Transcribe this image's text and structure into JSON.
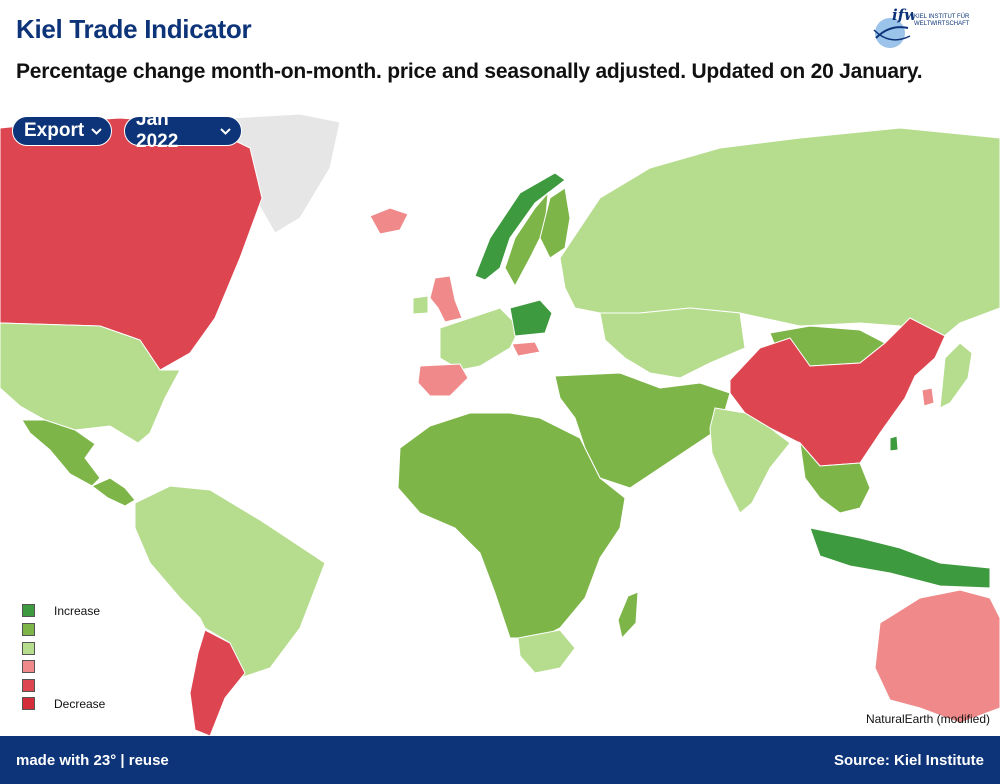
{
  "header": {
    "title": "Kiel Trade Indicator",
    "subtitle": "Percentage change month-on-month. price and seasonally adjusted. Updated on 20 January.",
    "logo_text": "ifw",
    "logo_caption_1": "KIEL INSTITUT FÜR",
    "logo_caption_2": "WELTWIRTSCHAFT"
  },
  "controls": {
    "flow_selected": "Export",
    "month_selected": "Jan 2022"
  },
  "legend": {
    "items": [
      {
        "label": "Increase",
        "color": "#3e9a3e"
      },
      {
        "label": "",
        "color": "#7db548"
      },
      {
        "label": "",
        "color": "#b6dc8e"
      },
      {
        "label": "",
        "color": "#f08a8a"
      },
      {
        "label": "",
        "color": "#dd4650"
      },
      {
        "label": "Decrease",
        "color": "#d42c3a"
      }
    ]
  },
  "map": {
    "source_note": "NaturalEarth (modified)",
    "colors": {
      "strong_increase": "#3e9a3e",
      "increase": "#7db548",
      "slight_increase": "#b6dc8e",
      "slight_decrease": "#f08a8a",
      "decrease": "#dd4650",
      "no_data": "#e6e6e6"
    },
    "regions": [
      {
        "name": "Canada",
        "category": "decrease"
      },
      {
        "name": "United States",
        "category": "slight_increase"
      },
      {
        "name": "Mexico",
        "category": "increase"
      },
      {
        "name": "Central America",
        "category": "increase"
      },
      {
        "name": "Greenland",
        "category": "no_data"
      },
      {
        "name": "Iceland",
        "category": "slight_decrease"
      },
      {
        "name": "South America",
        "category": "slight_increase"
      },
      {
        "name": "Argentina",
        "category": "decrease"
      },
      {
        "name": "United Kingdom",
        "category": "slight_decrease"
      },
      {
        "name": "Spain",
        "category": "slight_decrease"
      },
      {
        "name": "Norway",
        "category": "strong_increase"
      },
      {
        "name": "Sweden",
        "category": "increase"
      },
      {
        "name": "Finland",
        "category": "increase"
      },
      {
        "name": "Poland",
        "category": "strong_increase"
      },
      {
        "name": "Hungary",
        "category": "slight_decrease"
      },
      {
        "name": "Western Europe",
        "category": "slight_increase"
      },
      {
        "name": "Russia",
        "category": "slight_increase"
      },
      {
        "name": "Kazakhstan",
        "category": "slight_increase"
      },
      {
        "name": "Mongolia",
        "category": "increase"
      },
      {
        "name": "China",
        "category": "decrease"
      },
      {
        "name": "South Korea",
        "category": "slight_decrease"
      },
      {
        "name": "Japan",
        "category": "slight_increase"
      },
      {
        "name": "Middle East",
        "category": "increase"
      },
      {
        "name": "India",
        "category": "slight_increase"
      },
      {
        "name": "Southeast Asia",
        "category": "increase"
      },
      {
        "name": "Indonesia",
        "category": "strong_increase"
      },
      {
        "name": "Africa",
        "category": "increase"
      },
      {
        "name": "South Africa",
        "category": "slight_increase"
      },
      {
        "name": "Madagascar",
        "category": "increase"
      },
      {
        "name": "Australia",
        "category": "slight_decrease"
      },
      {
        "name": "Taiwan",
        "category": "strong_increase"
      }
    ]
  },
  "footer": {
    "made_with": "made with 23°",
    "separator": " | ",
    "reuse": "reuse",
    "source": "Source: Kiel Institute"
  }
}
